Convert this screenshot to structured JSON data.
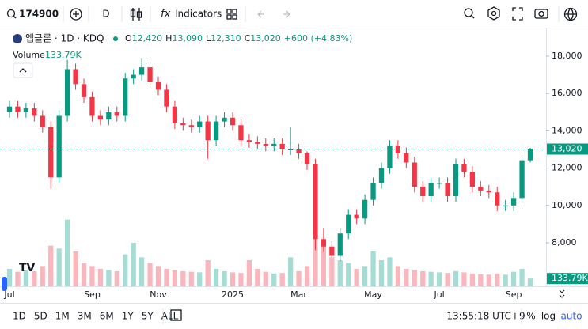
{
  "toolbar": {
    "symbol": "174900",
    "interval": "D",
    "indicators": "Indicators"
  },
  "legend": {
    "title": "앱클론 · 1D · KDQ",
    "open_label": "O",
    "open": "12,420",
    "high_label": "H",
    "high": "13,090",
    "low_label": "L",
    "low": "12,310",
    "close_label": "C",
    "close": "13,020",
    "change": "+600 (+4.83%)"
  },
  "chart_data": {
    "type": "candlestick",
    "categories": [
      "Jul",
      null,
      null,
      null,
      null,
      null,
      null,
      null,
      null,
      null,
      "Sep",
      null,
      null,
      null,
      null,
      null,
      null,
      null,
      "Nov",
      null,
      null,
      null,
      null,
      null,
      null,
      null,
      null,
      "2025",
      null,
      null,
      null,
      null,
      null,
      null,
      null,
      "Mar",
      null,
      null,
      null,
      null,
      null,
      null,
      null,
      null,
      "May",
      null,
      null,
      null,
      null,
      null,
      null,
      null,
      "Jul",
      null,
      null,
      null,
      null,
      null,
      null,
      null,
      null,
      "Sep",
      null,
      null
    ],
    "open": [
      15000,
      15300,
      15000,
      15200,
      14800,
      14200,
      11500,
      14800,
      17300,
      16500,
      15800,
      14800,
      14600,
      15000,
      14800,
      16800,
      17000,
      17400,
      16600,
      16200,
      15300,
      14400,
      14300,
      14200,
      14500,
      13500,
      14500,
      14700,
      14300,
      13500,
      13400,
      13300,
      13200,
      13300,
      13000,
      13000,
      12800,
      12200,
      8200,
      7800,
      7300,
      8500,
      9500,
      9300,
      10300,
      11200,
      12000,
      13200,
      12800,
      12300,
      11000,
      10500,
      11200,
      11200,
      10500,
      12200,
      11800,
      11000,
      10800,
      10700,
      10000,
      10000,
      10400,
      12420
    ],
    "high": [
      15600,
      15600,
      15500,
      15500,
      15100,
      14500,
      15100,
      17800,
      17600,
      16800,
      16100,
      15100,
      15300,
      15300,
      17100,
      17300,
      17900,
      17700,
      16900,
      16500,
      15600,
      14700,
      14600,
      14800,
      14800,
      14800,
      15000,
      15000,
      14600,
      13800,
      13700,
      13600,
      13600,
      13600,
      14200,
      13300,
      12900,
      12500,
      8800,
      8100,
      8800,
      9800,
      9800,
      10600,
      11500,
      12300,
      13500,
      13500,
      13100,
      12600,
      11300,
      11500,
      11500,
      11500,
      12500,
      12500,
      12100,
      11300,
      11100,
      11000,
      10300,
      10700,
      12700,
      13090
    ],
    "low": [
      14700,
      14700,
      14700,
      14500,
      13900,
      10900,
      11200,
      14500,
      16200,
      15500,
      14500,
      14300,
      14300,
      14500,
      14500,
      16500,
      16700,
      16300,
      15900,
      15000,
      14100,
      14000,
      13900,
      13900,
      12500,
      13200,
      14200,
      14000,
      13200,
      13100,
      13000,
      12900,
      12900,
      12700,
      12700,
      12500,
      11900,
      7600,
      7500,
      7200,
      7000,
      8200,
      9000,
      9000,
      10000,
      10900,
      11700,
      12500,
      12000,
      10700,
      10200,
      10200,
      10900,
      10200,
      10200,
      11500,
      10700,
      10500,
      10400,
      9700,
      9700,
      9700,
      10100,
      12310
    ],
    "close": [
      15300,
      15000,
      15200,
      14800,
      14200,
      11500,
      14800,
      17300,
      16500,
      15800,
      14800,
      14600,
      15000,
      14800,
      16800,
      17000,
      17400,
      16600,
      16200,
      15300,
      14400,
      14300,
      14200,
      14500,
      13500,
      14500,
      14700,
      14300,
      13500,
      13400,
      13300,
      13200,
      13300,
      13000,
      13000,
      12800,
      12200,
      8200,
      7800,
      7300,
      8500,
      9500,
      9300,
      10300,
      11200,
      12000,
      13200,
      12800,
      12300,
      11000,
      10500,
      11200,
      11200,
      10500,
      12200,
      11800,
      11000,
      10800,
      10700,
      10000,
      10000,
      10400,
      12420,
      13020
    ],
    "up_color": "#089981",
    "down_color": "#f23645",
    "ylim": [
      5670,
      19480
    ],
    "yticks": [
      {
        "value": 8000,
        "label": "8,000"
      },
      {
        "value": 10000,
        "label": "10,000"
      },
      {
        "value": 12000,
        "label": "12,000"
      },
      {
        "value": 14000,
        "label": "14,000"
      },
      {
        "value": 16000,
        "label": "16,000"
      },
      {
        "value": 18000,
        "label": "18,000"
      }
    ],
    "last_price": {
      "value": 13020,
      "label": "13,020"
    },
    "volume": {
      "name": "Volume",
      "values": [
        300000,
        250000,
        280000,
        260000,
        350000,
        700000,
        650000,
        1150000,
        600000,
        400000,
        350000,
        300000,
        280000,
        260000,
        550000,
        750000,
        500000,
        400000,
        350000,
        300000,
        280000,
        260000,
        250000,
        240000,
        450000,
        300000,
        260000,
        240000,
        230000,
        450000,
        300000,
        250000,
        220000,
        230000,
        500000,
        260000,
        350000,
        950000,
        700000,
        500000,
        450000,
        400000,
        300000,
        350000,
        600000,
        450000,
        500000,
        350000,
        300000,
        280000,
        260000,
        250000,
        240000,
        230000,
        260000,
        240000,
        220000,
        210000,
        200000,
        220000,
        200000,
        250000,
        300000,
        133790
      ],
      "value_labels": [
        null,
        null,
        null,
        null,
        null,
        null,
        null,
        null,
        null,
        null,
        null,
        null,
        null,
        null,
        null,
        null,
        null,
        null,
        null,
        null,
        null,
        null,
        null,
        null,
        null,
        null,
        null,
        null,
        null,
        null,
        null,
        null,
        null,
        null,
        null,
        null,
        null,
        null,
        null,
        null,
        null,
        null,
        null,
        null,
        null,
        null,
        null,
        null,
        null,
        null,
        null,
        null,
        null,
        null,
        null,
        null,
        null,
        null,
        null,
        null,
        null,
        null,
        null,
        "133.79K"
      ],
      "ylim": [
        0,
        1500000
      ],
      "up_color": "#a5dcd3",
      "down_color": "#f9b7bd"
    }
  },
  "bottom_bar": {
    "ranges": [
      "1D",
      "5D",
      "1M",
      "3M",
      "6M",
      "1Y",
      "5Y",
      "ALL"
    ],
    "time": "13:55:18 UTC+9",
    "percent": "%",
    "log": "log",
    "auto": "auto"
  }
}
